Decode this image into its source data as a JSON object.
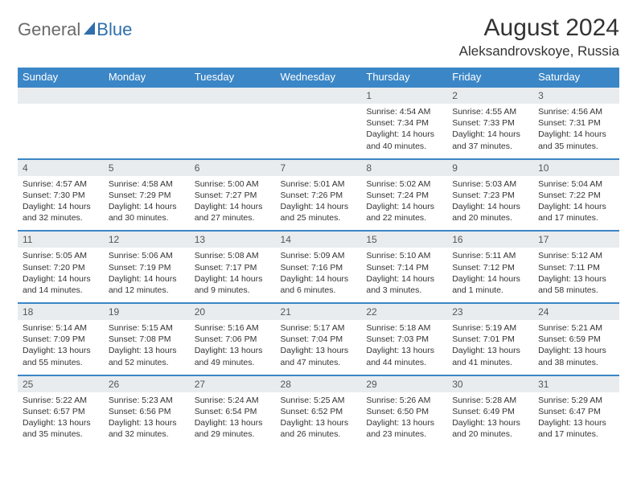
{
  "brand": {
    "part1": "General",
    "part2": "Blue"
  },
  "title": "August 2024",
  "location": "Aleksandrovskoye, Russia",
  "colors": {
    "header_bg": "#3b86c6",
    "header_fg": "#ffffff",
    "daynum_bg": "#e9ecef",
    "row_border": "#3b86c6",
    "logo_gray": "#6a6a6a",
    "logo_blue": "#2f6fab"
  },
  "day_headers": [
    "Sunday",
    "Monday",
    "Tuesday",
    "Wednesday",
    "Thursday",
    "Friday",
    "Saturday"
  ],
  "weeks": [
    [
      null,
      null,
      null,
      null,
      {
        "n": "1",
        "sr": "4:54 AM",
        "ss": "7:34 PM",
        "dl": "14 hours and 40 minutes."
      },
      {
        "n": "2",
        "sr": "4:55 AM",
        "ss": "7:33 PM",
        "dl": "14 hours and 37 minutes."
      },
      {
        "n": "3",
        "sr": "4:56 AM",
        "ss": "7:31 PM",
        "dl": "14 hours and 35 minutes."
      }
    ],
    [
      {
        "n": "4",
        "sr": "4:57 AM",
        "ss": "7:30 PM",
        "dl": "14 hours and 32 minutes."
      },
      {
        "n": "5",
        "sr": "4:58 AM",
        "ss": "7:29 PM",
        "dl": "14 hours and 30 minutes."
      },
      {
        "n": "6",
        "sr": "5:00 AM",
        "ss": "7:27 PM",
        "dl": "14 hours and 27 minutes."
      },
      {
        "n": "7",
        "sr": "5:01 AM",
        "ss": "7:26 PM",
        "dl": "14 hours and 25 minutes."
      },
      {
        "n": "8",
        "sr": "5:02 AM",
        "ss": "7:24 PM",
        "dl": "14 hours and 22 minutes."
      },
      {
        "n": "9",
        "sr": "5:03 AM",
        "ss": "7:23 PM",
        "dl": "14 hours and 20 minutes."
      },
      {
        "n": "10",
        "sr": "5:04 AM",
        "ss": "7:22 PM",
        "dl": "14 hours and 17 minutes."
      }
    ],
    [
      {
        "n": "11",
        "sr": "5:05 AM",
        "ss": "7:20 PM",
        "dl": "14 hours and 14 minutes."
      },
      {
        "n": "12",
        "sr": "5:06 AM",
        "ss": "7:19 PM",
        "dl": "14 hours and 12 minutes."
      },
      {
        "n": "13",
        "sr": "5:08 AM",
        "ss": "7:17 PM",
        "dl": "14 hours and 9 minutes."
      },
      {
        "n": "14",
        "sr": "5:09 AM",
        "ss": "7:16 PM",
        "dl": "14 hours and 6 minutes."
      },
      {
        "n": "15",
        "sr": "5:10 AM",
        "ss": "7:14 PM",
        "dl": "14 hours and 3 minutes."
      },
      {
        "n": "16",
        "sr": "5:11 AM",
        "ss": "7:12 PM",
        "dl": "14 hours and 1 minute."
      },
      {
        "n": "17",
        "sr": "5:12 AM",
        "ss": "7:11 PM",
        "dl": "13 hours and 58 minutes."
      }
    ],
    [
      {
        "n": "18",
        "sr": "5:14 AM",
        "ss": "7:09 PM",
        "dl": "13 hours and 55 minutes."
      },
      {
        "n": "19",
        "sr": "5:15 AM",
        "ss": "7:08 PM",
        "dl": "13 hours and 52 minutes."
      },
      {
        "n": "20",
        "sr": "5:16 AM",
        "ss": "7:06 PM",
        "dl": "13 hours and 49 minutes."
      },
      {
        "n": "21",
        "sr": "5:17 AM",
        "ss": "7:04 PM",
        "dl": "13 hours and 47 minutes."
      },
      {
        "n": "22",
        "sr": "5:18 AM",
        "ss": "7:03 PM",
        "dl": "13 hours and 44 minutes."
      },
      {
        "n": "23",
        "sr": "5:19 AM",
        "ss": "7:01 PM",
        "dl": "13 hours and 41 minutes."
      },
      {
        "n": "24",
        "sr": "5:21 AM",
        "ss": "6:59 PM",
        "dl": "13 hours and 38 minutes."
      }
    ],
    [
      {
        "n": "25",
        "sr": "5:22 AM",
        "ss": "6:57 PM",
        "dl": "13 hours and 35 minutes."
      },
      {
        "n": "26",
        "sr": "5:23 AM",
        "ss": "6:56 PM",
        "dl": "13 hours and 32 minutes."
      },
      {
        "n": "27",
        "sr": "5:24 AM",
        "ss": "6:54 PM",
        "dl": "13 hours and 29 minutes."
      },
      {
        "n": "28",
        "sr": "5:25 AM",
        "ss": "6:52 PM",
        "dl": "13 hours and 26 minutes."
      },
      {
        "n": "29",
        "sr": "5:26 AM",
        "ss": "6:50 PM",
        "dl": "13 hours and 23 minutes."
      },
      {
        "n": "30",
        "sr": "5:28 AM",
        "ss": "6:49 PM",
        "dl": "13 hours and 20 minutes."
      },
      {
        "n": "31",
        "sr": "5:29 AM",
        "ss": "6:47 PM",
        "dl": "13 hours and 17 minutes."
      }
    ]
  ],
  "labels": {
    "sunrise": "Sunrise:",
    "sunset": "Sunset:",
    "daylight": "Daylight:"
  }
}
